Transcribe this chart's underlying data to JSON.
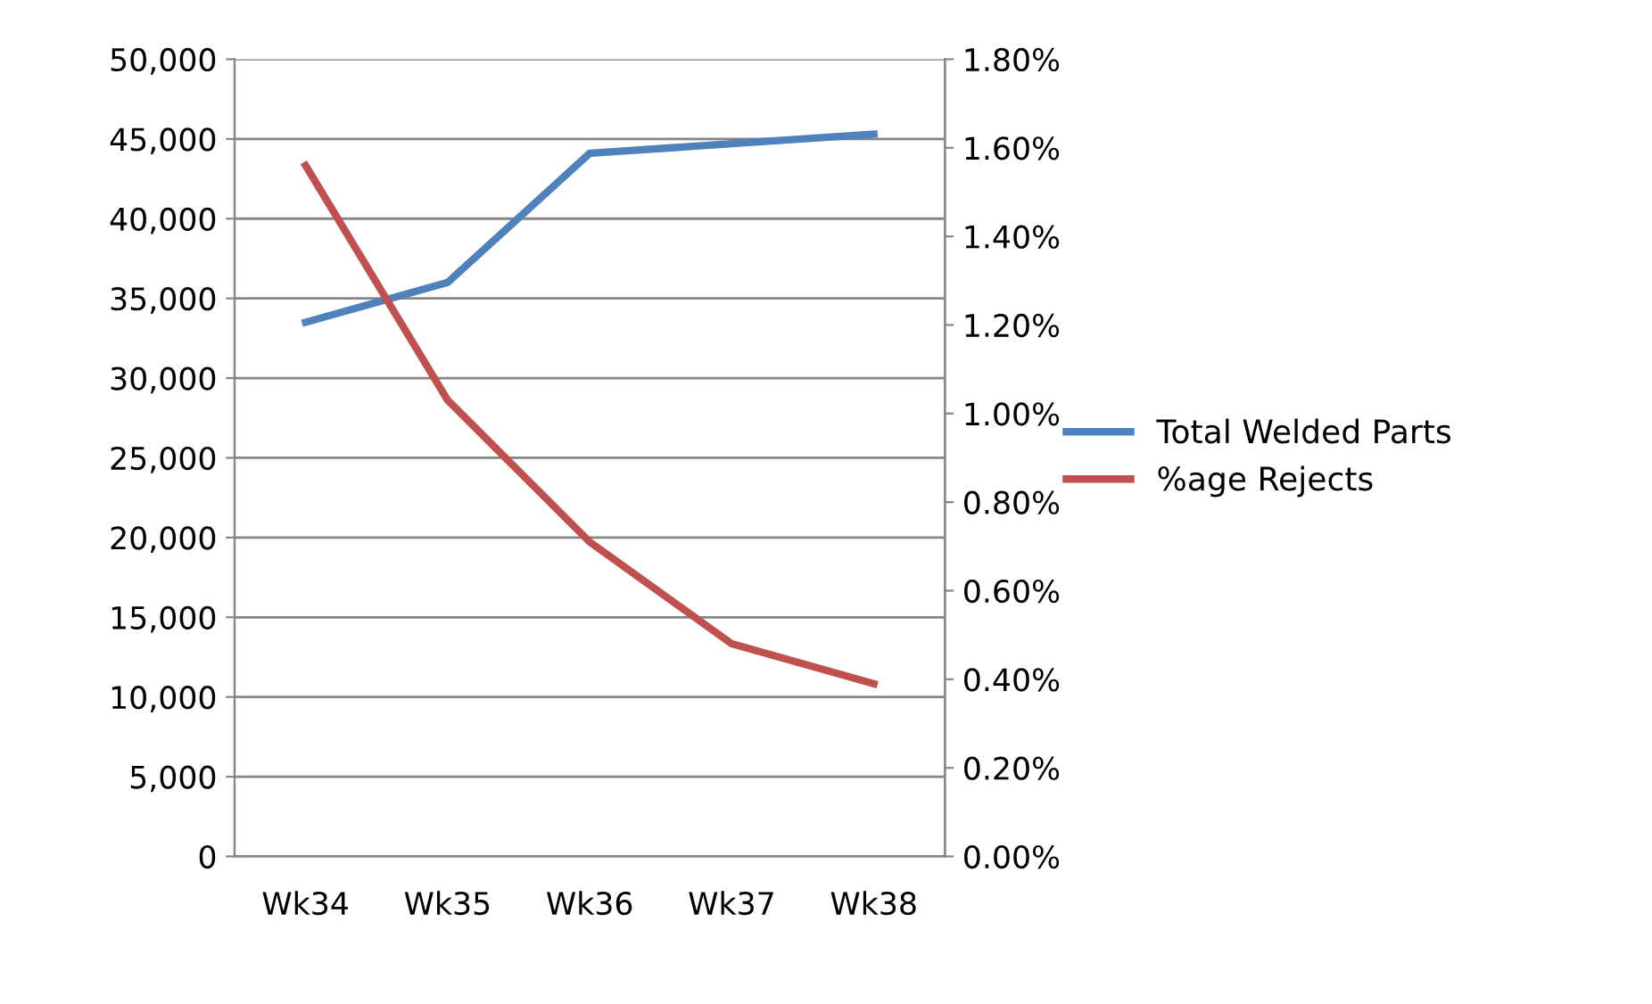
{
  "chart_data": {
    "type": "line",
    "categories": [
      "Wk34",
      "Wk35",
      "Wk36",
      "Wk37",
      "Wk38"
    ],
    "series": [
      {
        "name": "Total Welded Parts",
        "color": "#4f81bd",
        "values": [
          33500,
          36000,
          44100,
          44700,
          45300
        ]
      },
      {
        "name": "%age Rejects",
        "color": "#c0504d",
        "axis": "y2",
        "values": [
          1.56,
          1.03,
          0.71,
          0.48,
          0.39
        ]
      }
    ],
    "ylim": [
      0,
      50000
    ],
    "yticks": [
      {
        "value": 0,
        "label": "0"
      },
      {
        "value": 5000,
        "label": "5,000"
      },
      {
        "value": 10000,
        "label": "10,000"
      },
      {
        "value": 15000,
        "label": "15,000"
      },
      {
        "value": 20000,
        "label": "20,000"
      },
      {
        "value": 25000,
        "label": "25,000"
      },
      {
        "value": 30000,
        "label": "30,000"
      },
      {
        "value": 35000,
        "label": "35,000"
      },
      {
        "value": 40000,
        "label": "40,000"
      },
      {
        "value": 45000,
        "label": "45,000"
      },
      {
        "value": 50000,
        "label": "50,000"
      }
    ],
    "y2lim": [
      0,
      1.8
    ],
    "y2ticks": [
      {
        "value": 0,
        "label": "0.00%"
      },
      {
        "value": 0.2,
        "label": "0.20%"
      },
      {
        "value": 0.4,
        "label": "0.40%"
      },
      {
        "value": 0.6,
        "label": "0.60%"
      },
      {
        "value": 0.8,
        "label": "0.80%"
      },
      {
        "value": 1.0,
        "label": "1.00%"
      },
      {
        "value": 1.2,
        "label": "1.20%"
      },
      {
        "value": 1.4,
        "label": "1.40%"
      },
      {
        "value": 1.6,
        "label": "1.60%"
      },
      {
        "value": 1.8,
        "label": "1.80%"
      }
    ],
    "grid": "y",
    "legend": "right",
    "line_style": "solid",
    "marker": "none"
  }
}
